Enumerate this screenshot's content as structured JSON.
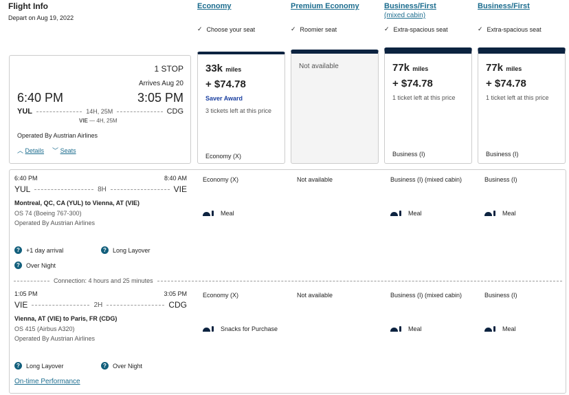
{
  "header": {
    "title": "Flight Info",
    "depart": "Depart on Aug 19, 2022"
  },
  "columns": [
    {
      "label": "Economy",
      "sub": "",
      "feature": "Choose your seat"
    },
    {
      "label": "Premium Economy",
      "sub": "",
      "feature": "Roomier seat"
    },
    {
      "label": "Business/First",
      "sub": "(mixed cabin)",
      "feature": "Extra-spacious seat"
    },
    {
      "label": "Business/First",
      "sub": "",
      "feature": "Extra-spacious seat"
    }
  ],
  "summary": {
    "stops": "1 STOP",
    "arrives": "Arrives Aug 20",
    "depart_time": "6:40 PM",
    "arrive_time": "3:05 PM",
    "from": "YUL",
    "to": "CDG",
    "duration": "14H, 25M",
    "layover_code": "VIE",
    "layover": "— 4H, 25M",
    "operated": "Operated By Austrian Airlines",
    "details": "Details",
    "seats": "Seats"
  },
  "fares": [
    {
      "miles": "33k",
      "unit": "miles",
      "price": "+ $74.78",
      "award": "Saver Award",
      "left": "3 tickets left at this price",
      "cabin": "Economy (X)"
    },
    {
      "na": "Not available"
    },
    {
      "miles": "77k",
      "unit": "miles",
      "price": "+ $74.78",
      "left": "1 ticket left at this price",
      "cabin": "Business (I)"
    },
    {
      "miles": "77k",
      "unit": "miles",
      "price": "+ $74.78",
      "left": "1 ticket left at this price",
      "cabin": "Business (I)"
    }
  ],
  "segments": [
    {
      "dep": "6:40 PM",
      "arr": "8:40 AM",
      "from": "YUL",
      "to": "VIE",
      "dur": "8H",
      "route": "Montreal, QC, CA (YUL) to Vienna, AT (VIE)",
      "flight": "OS 74 (Boeing 767-300)",
      "operated": "Operated By Austrian Airlines",
      "cabins": [
        "Economy (X)",
        "Not available",
        "Business (I) (mixed cabin)",
        "Business (I)"
      ],
      "meals": [
        "Meal",
        "",
        "Meal",
        "Meal"
      ],
      "notes": [
        "+1 day arrival",
        "Long Layover",
        "Over Night"
      ]
    },
    {
      "dep": "1:05 PM",
      "arr": "3:05 PM",
      "from": "VIE",
      "to": "CDG",
      "dur": "2H",
      "route": "Vienna, AT (VIE) to Paris, FR (CDG)",
      "flight": "OS 415 (Airbus A320)",
      "operated": "Operated By Austrian Airlines",
      "cabins": [
        "Economy (X)",
        "Not available",
        "Business (I) (mixed cabin)",
        "Business (I)"
      ],
      "meals": [
        "Snacks for Purchase",
        "",
        "Meal",
        "Meal"
      ],
      "notes": [
        "Long Layover",
        "Over Night"
      ]
    }
  ],
  "connection": "Connection: 4 hours and 25 minutes",
  "ontime": "On-time Performance",
  "colors": {
    "navy": "#0c2340",
    "link": "#1b6c8e",
    "award": "#1a3fa0"
  }
}
